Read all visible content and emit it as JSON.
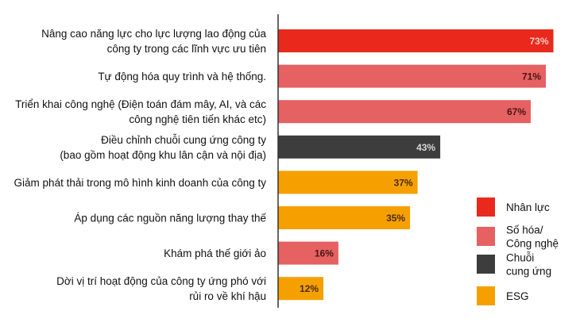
{
  "chart_data": {
    "type": "bar",
    "orientation": "horizontal",
    "xlim": [
      0,
      100
    ],
    "grid": false,
    "legend_position": "bottom-right",
    "categories": [
      [
        "Nâng cao năng lực cho lực lượng lao động của",
        "công ty trong các lĩnh vực ưu tiên"
      ],
      [
        "Tự động hóa quy trình và hệ thống."
      ],
      [
        "Triển khai công nghệ (Điện toán đám mây, AI, và các",
        "công nghệ tiên tiến khác etc)"
      ],
      [
        "Điều chỉnh chuỗi cung ứng công ty",
        "(bao gồm hoạt động khu lân cận và nội địa)"
      ],
      [
        "Giảm phát thải trong mô hình kinh doanh của công ty"
      ],
      [
        "Áp dụng các nguồn năng lượng thay thế"
      ],
      [
        "Khám phá thế giới ảo"
      ],
      [
        "Dời vị trí hoạt động của công ty ứng phó với",
        "rủi ro về khí hậu"
      ]
    ],
    "values": [
      73,
      71,
      67,
      43,
      37,
      35,
      16,
      12
    ],
    "value_labels": [
      "73%",
      "71%",
      "67%",
      "43%",
      "37%",
      "35%",
      "16%",
      "12%"
    ],
    "bar_groups": [
      "nhan_luc",
      "so_hoa",
      "so_hoa",
      "chuoi",
      "esg",
      "esg",
      "so_hoa",
      "esg"
    ],
    "legend": [
      {
        "key": "nhan_luc",
        "label": [
          "Nhân lực"
        ],
        "color": "#e8291c"
      },
      {
        "key": "so_hoa",
        "label": [
          "Số hóa/",
          "Công nghệ"
        ],
        "color": "#e56162"
      },
      {
        "key": "chuoi",
        "label": [
          "Chuỗi",
          "cung ứng"
        ],
        "color": "#3d3d3d"
      },
      {
        "key": "esg",
        "label": [
          "ESG"
        ],
        "color": "#f5a000"
      }
    ],
    "value_label_colors": {
      "nhan_luc": "#f6c9c6",
      "so_hoa": "#4a1512",
      "chuoi": "#d8d8d8",
      "esg": "#4a2c00"
    }
  }
}
